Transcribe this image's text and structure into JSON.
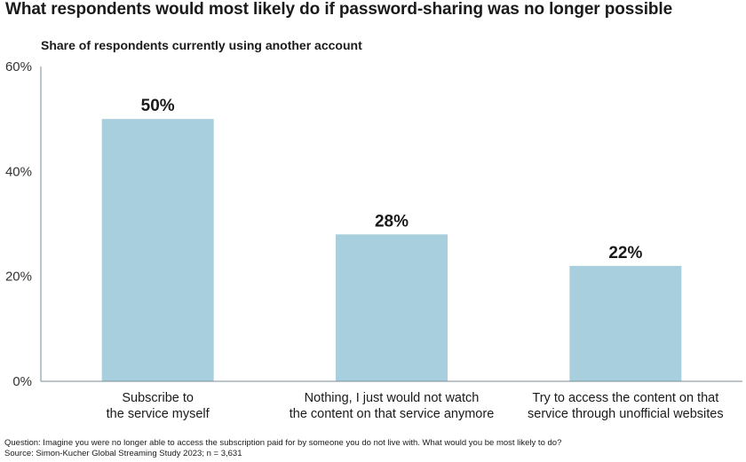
{
  "chart_data": {
    "type": "bar",
    "title": "What respondents would most likely do if password-sharing was no longer possible",
    "subtitle": "Share of respondents currently using another account",
    "categories": [
      [
        "Subscribe to",
        "the service myself"
      ],
      [
        "Nothing, I just would not watch",
        "the content on that service anymore"
      ],
      [
        "Try to access the content on that",
        "service through unofficial websites"
      ]
    ],
    "values": [
      50,
      28,
      22
    ],
    "data_labels": [
      "50%",
      "28%",
      "22%"
    ],
    "ylim": [
      0,
      60
    ],
    "yticks": [
      0,
      20,
      40,
      60
    ],
    "ytick_labels": [
      "0%",
      "20%",
      "40%",
      "60%"
    ],
    "bar_color": "#a8cfdd",
    "axis_color": "#7a8d96",
    "grid": false,
    "legend": "none"
  },
  "footer": {
    "question": "Question: Imagine you were no longer able to access the subscription paid for by someone you do not live with. What would you be most likely to do?",
    "source": "Source: Simon-Kucher Global Streaming Study 2023; n = 3,631"
  }
}
